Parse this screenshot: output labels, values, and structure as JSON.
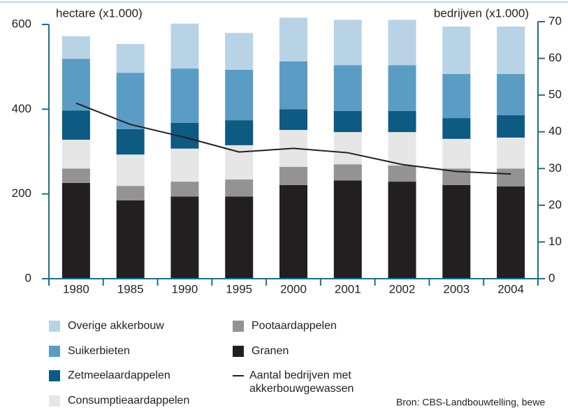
{
  "chart_data": {
    "type": "bar",
    "y_label": "hectare (x1.000)",
    "y2_label": "bedrijven (x1.000)",
    "source": "Bron: CBS-Landbouwtelling, bewe",
    "categories": [
      "1980",
      "1985",
      "1990",
      "1995",
      "2000",
      "2001",
      "2002",
      "2003",
      "2004"
    ],
    "series": [
      {
        "name": "Granen",
        "color": "#231f20",
        "values": [
          226,
          185,
          194,
          194,
          221,
          232,
          229,
          221,
          218
        ]
      },
      {
        "name": "Pootaardappelen",
        "color": "#939393",
        "values": [
          34,
          34,
          35,
          40,
          43,
          38,
          38,
          39,
          42
        ]
      },
      {
        "name": "Consumptieaardappelen",
        "color": "#e6e6e6",
        "values": [
          68,
          74,
          78,
          81,
          87,
          76,
          79,
          70,
          73
        ]
      },
      {
        "name": "Zetmeelaardappelen",
        "color": "#0d5a82",
        "values": [
          69,
          60,
          61,
          59,
          49,
          50,
          50,
          49,
          53
        ]
      },
      {
        "name": "Suikerbieten",
        "color": "#5b9cc4",
        "values": [
          122,
          133,
          128,
          119,
          113,
          108,
          108,
          104,
          97
        ]
      },
      {
        "name": "Overige akkerbouw",
        "color": "#b9d3e6",
        "values": [
          53,
          68,
          106,
          87,
          103,
          107,
          107,
          112,
          112
        ]
      },
      {
        "name": "Aantal bedrijven met akkerbouwgewassen",
        "color": "#231f20",
        "type": "line",
        "axis": "y2",
        "values": [
          47.8,
          42,
          38.5,
          34.5,
          35.5,
          34.3,
          31.1,
          29.2,
          28.5
        ]
      }
    ],
    "ylim": [
      0,
      600
    ],
    "yticks": [
      0,
      200,
      400,
      600
    ],
    "y2lim": [
      0,
      70
    ],
    "y2ticks": [
      0,
      10,
      20,
      30,
      40,
      50,
      60,
      70
    ],
    "axis_color": "#1f6f8b"
  }
}
